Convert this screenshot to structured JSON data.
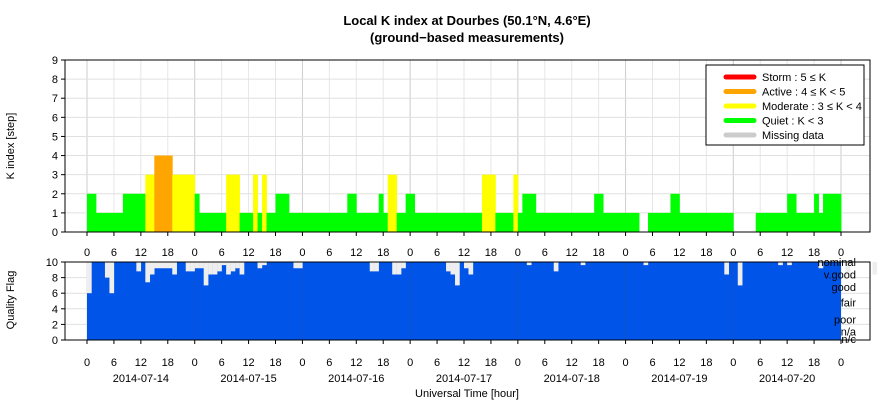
{
  "title": "Local K index at Dourbes (50.1°N, 4.6°E)",
  "subtitle": "(ground−based measurements)",
  "colors": {
    "storm": "#ff0000",
    "active": "#ffa500",
    "moderate": "#ffff00",
    "quiet": "#00ff00",
    "missing": "#cccccc",
    "quality": "#0055e8",
    "quality_missing": "#eeeeee",
    "grid": "#cccccc"
  },
  "chart_data": [
    {
      "type": "bar",
      "panel": "k-index",
      "ylabel": "K index [step]",
      "ylim": [
        0,
        9
      ],
      "yticks": [
        0,
        1,
        2,
        3,
        4,
        5,
        6,
        7,
        8,
        9
      ],
      "x_tick_labels": [
        "0",
        "6",
        "12",
        "18",
        "0",
        "6",
        "12",
        "18",
        "0",
        "6",
        "12",
        "18",
        "0",
        "6",
        "12",
        "18",
        "0",
        "6",
        "12",
        "18",
        "0",
        "6",
        "12",
        "18",
        "0",
        "6",
        "12",
        "18",
        "0"
      ],
      "x_start": "2014-07-14 00:00",
      "x_end": "2014-07-21 00:00",
      "bar_hours": 1,
      "grid": true,
      "legend_position": "top-right",
      "legend": [
        {
          "label": "Storm : 5 ≤ K",
          "color": "#ff0000"
        },
        {
          "label": "Active : 4 ≤ K < 5",
          "color": "#ffa500"
        },
        {
          "label": "Moderate : 3 ≤ K < 4",
          "color": "#ffff00"
        },
        {
          "label": "Quiet : K < 3",
          "color": "#00ff00"
        },
        {
          "label": "Missing data",
          "color": "#cccccc"
        }
      ],
      "hourly_K": [
        2,
        2,
        1,
        1,
        1,
        1,
        1,
        1,
        2,
        2,
        2,
        2,
        2,
        3,
        3,
        4,
        4,
        4,
        4,
        3,
        3,
        3,
        3,
        3,
        2,
        1,
        1,
        1,
        1,
        1,
        1,
        3,
        3,
        3,
        1,
        1,
        1,
        3,
        1,
        3,
        1,
        1,
        2,
        2,
        2,
        1,
        1,
        1,
        1,
        1,
        1,
        1,
        1,
        1,
        1,
        1,
        1,
        1,
        2,
        2,
        1,
        1,
        1,
        1,
        1,
        2,
        1,
        3,
        3,
        1,
        1,
        2,
        2,
        1,
        1,
        1,
        1,
        1,
        1,
        1,
        1,
        1,
        1,
        1,
        1,
        1,
        1,
        1,
        3,
        3,
        3,
        1,
        1,
        1,
        1,
        3,
        1,
        2,
        2,
        2,
        1,
        1,
        1,
        1,
        1,
        1,
        1,
        1,
        1,
        1,
        1,
        1,
        1,
        2,
        2,
        1,
        1,
        1,
        1,
        1,
        1,
        1,
        1,
        0,
        0,
        1,
        1,
        1,
        1,
        1,
        2,
        2,
        1,
        1,
        1,
        1,
        1,
        1,
        1,
        1,
        1,
        1,
        1,
        1,
        0,
        0,
        0,
        0,
        0,
        1,
        1,
        1,
        1,
        1,
        1,
        1,
        2,
        2,
        1,
        1,
        1,
        1,
        2,
        1,
        2,
        2,
        2,
        2
      ],
      "day_labels": [
        "2014-07-14",
        "2014-07-15",
        "2014-07-16",
        "2014-07-17",
        "2014-07-18",
        "2014-07-19",
        "2014-07-20"
      ]
    },
    {
      "type": "area",
      "panel": "quality-flag",
      "ylabel": "Quality Flag",
      "xlabel": "Universal Time [hour]",
      "ylim": [
        0,
        10
      ],
      "yticks": [
        0,
        2,
        4,
        6,
        8,
        10
      ],
      "right_labels": [
        {
          "label": "nominal",
          "y": 10
        },
        {
          "label": "v.good",
          "y": 8.4
        },
        {
          "label": "good",
          "y": 6.8
        },
        {
          "label": "fair",
          "y": 4.8
        },
        {
          "label": "poor",
          "y": 2.6
        },
        {
          "label": "n/a",
          "y": 1.1
        },
        {
          "label": "n/c",
          "y": 0.1
        }
      ],
      "quality_dips": [
        {
          "hour": 0,
          "q": 6
        },
        {
          "hour": 4,
          "q": 8
        },
        {
          "hour": 5,
          "q": 6
        },
        {
          "hour": 11,
          "q": 8.8
        },
        {
          "hour": 13,
          "q": 7.4
        },
        {
          "hour": 14,
          "q": 8.4
        },
        {
          "hour": 15,
          "q": 9.2
        },
        {
          "hour": 16,
          "q": 9.2
        },
        {
          "hour": 17,
          "q": 9.2
        },
        {
          "hour": 18,
          "q": 9.2
        },
        {
          "hour": 19,
          "q": 8.4
        },
        {
          "hour": 22,
          "q": 8.8
        },
        {
          "hour": 23,
          "q": 8.8
        },
        {
          "hour": 24,
          "q": 9.2
        },
        {
          "hour": 25,
          "q": 9.2
        },
        {
          "hour": 26,
          "q": 7
        },
        {
          "hour": 27,
          "q": 8.4
        },
        {
          "hour": 28,
          "q": 8.4
        },
        {
          "hour": 29,
          "q": 8.8
        },
        {
          "hour": 30,
          "q": 9.6
        },
        {
          "hour": 31,
          "q": 8.4
        },
        {
          "hour": 32,
          "q": 8.8
        },
        {
          "hour": 33,
          "q": 9.2
        },
        {
          "hour": 34,
          "q": 8.4
        },
        {
          "hour": 38,
          "q": 9.2
        },
        {
          "hour": 39,
          "q": 9.6
        },
        {
          "hour": 46,
          "q": 9.2
        },
        {
          "hour": 47,
          "q": 9.2
        },
        {
          "hour": 63,
          "q": 8.8
        },
        {
          "hour": 64,
          "q": 8.8
        },
        {
          "hour": 68,
          "q": 8.4
        },
        {
          "hour": 69,
          "q": 8.4
        },
        {
          "hour": 70,
          "q": 9.2
        },
        {
          "hour": 80,
          "q": 8.8
        },
        {
          "hour": 81,
          "q": 8.4
        },
        {
          "hour": 82,
          "q": 7
        },
        {
          "hour": 84,
          "q": 9.2
        },
        {
          "hour": 85,
          "q": 8.4
        },
        {
          "hour": 98,
          "q": 9.6
        },
        {
          "hour": 104,
          "q": 8.8
        },
        {
          "hour": 110,
          "q": 9.6
        },
        {
          "hour": 124,
          "q": 9.6
        },
        {
          "hour": 142,
          "q": 8.4
        },
        {
          "hour": 145,
          "q": 7
        },
        {
          "hour": 154,
          "q": 9.6
        },
        {
          "hour": 156,
          "q": 9.6
        },
        {
          "hour": 163,
          "q": 9.2
        },
        {
          "hour": 169,
          "q": 8.4
        },
        {
          "hour": 175,
          "q": 8.4
        },
        {
          "hour": 184,
          "q": 9.2
        }
      ]
    }
  ]
}
